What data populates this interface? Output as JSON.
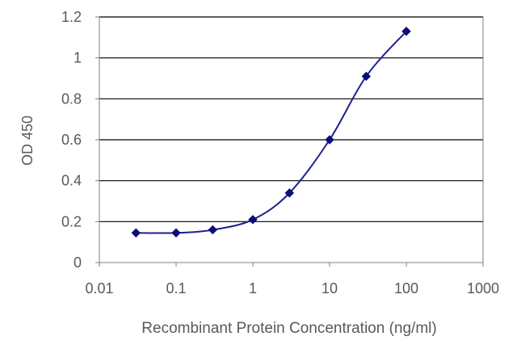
{
  "chart_data": {
    "type": "scatter",
    "title": "",
    "xlabel": "Recombinant Protein Concentration (ng/ml)",
    "ylabel": "OD 450",
    "x_scale": "log",
    "xlim": [
      0.01,
      1000
    ],
    "ylim": [
      0,
      1.2
    ],
    "x_ticks": [
      "0.01",
      "0.1",
      "1",
      "10",
      "100",
      "1000"
    ],
    "y_ticks": [
      "0",
      "0.2",
      "0.4",
      "0.6",
      "0.8",
      "1",
      "1.2"
    ],
    "grid": "horizontal",
    "legend": "none",
    "series": [
      {
        "x": [
          0.03,
          0.1,
          0.3,
          1,
          3,
          10,
          30,
          100
        ],
        "y": [
          0.145,
          0.145,
          0.16,
          0.21,
          0.34,
          0.6,
          0.91,
          1.13
        ],
        "marker": "diamond",
        "line": "smooth"
      }
    ],
    "colors": {
      "series": "#1f1f8f",
      "marker": "#0c0c7a",
      "grid": "#000000",
      "axis": "#7f7f7f",
      "text": "#595959"
    }
  }
}
